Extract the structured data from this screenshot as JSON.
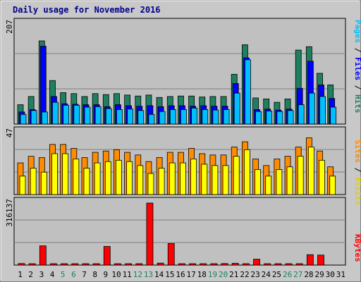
{
  "chart_data": {
    "type": "bar",
    "title": "Daily usage for November 2016",
    "categories": [
      "1",
      "2",
      "3",
      "4",
      "5",
      "6",
      "7",
      "8",
      "9",
      "10",
      "11",
      "12",
      "13",
      "14",
      "15",
      "16",
      "17",
      "18",
      "19",
      "20",
      "21",
      "22",
      "23",
      "24",
      "25",
      "26",
      "27",
      "28",
      "29",
      "30",
      "31"
    ],
    "weekend_days": [
      "5",
      "6",
      "12",
      "13",
      "19",
      "20",
      "26",
      "27"
    ],
    "legend": [
      "Pages",
      "Files",
      "Hits",
      "Sites",
      "Visits",
      "KBytes"
    ],
    "panels": [
      {
        "id": "hits",
        "max_label": "207",
        "max": 207,
        "series": [
          {
            "name": "Hits",
            "color": "#1e8060",
            "values": [
              40,
              57,
              172,
              90,
              65,
              63,
              57,
              63,
              61,
              63,
              60,
              58,
              60,
              55,
              57,
              58,
              58,
              56,
              57,
              57,
              103,
              164,
              54,
              52,
              45,
              52,
              153,
              160,
              105,
              81,
              0
            ]
          },
          {
            "name": "Files",
            "color": "#0000ff",
            "values": [
              25,
              30,
              161,
              57,
              42,
              41,
              40,
              40,
              36,
              40,
              38,
              37,
              38,
              36,
              38,
              38,
              37,
              38,
              37,
              37,
              84,
              137,
              30,
              31,
              29,
              31,
              74,
              130,
              81,
              53,
              0
            ]
          },
          {
            "name": "Pages",
            "color": "#00bfff",
            "values": [
              20,
              28,
              25,
              45,
              39,
              39,
              35,
              36,
              32,
              30,
              31,
              28,
              20,
              26,
              30,
              30,
              33,
              30,
              29,
              30,
              64,
              133,
              26,
              27,
              26,
              28,
              40,
              64,
              57,
              35,
              0
            ]
          }
        ]
      },
      {
        "id": "visits",
        "max_label": "47",
        "max": 47,
        "series": [
          {
            "name": "Sites",
            "color": "#ff8c00",
            "values": [
              24,
              29,
              28,
              38,
              38,
              35,
              28,
              32,
              33,
              34,
              32,
              30,
              25,
              28,
              32,
              32,
              35,
              31,
              30,
              30,
              36,
              40,
              27,
              22,
              27,
              29,
              36,
              43,
              33,
              21,
              0
            ]
          },
          {
            "name": "Visits",
            "color": "#ffff00",
            "values": [
              14,
              20,
              17,
              31,
              31,
              27,
              20,
              24,
              25,
              26,
              25,
              22,
              16,
              20,
              24,
              24,
              27,
              23,
              22,
              22,
              29,
              34,
              19,
              14,
              19,
              21,
              29,
              36,
              26,
              14,
              0
            ]
          }
        ]
      },
      {
        "id": "kbytes",
        "max_label": "316137",
        "max": 316137,
        "series": [
          {
            "name": "KBytes",
            "color": "#ff0000",
            "values": [
              8000,
              7000,
              98000,
              6000,
              3000,
              3000,
              4000,
              3000,
              95000,
              4000,
              3000,
              3000,
              316137,
              10000,
              110000,
              3000,
              4000,
              6000,
              7000,
              8000,
              9000,
              7000,
              30000,
              3000,
              3000,
              3000,
              5000,
              53000,
              51000,
              0,
              0
            ]
          }
        ]
      }
    ]
  }
}
